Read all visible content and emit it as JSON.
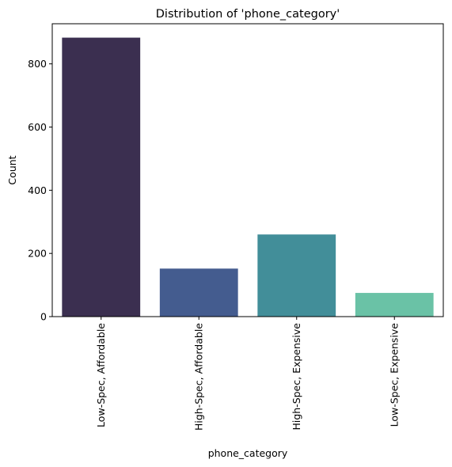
{
  "chart_data": {
    "type": "bar",
    "title": "Distribution of 'phone_category'",
    "xlabel": "phone_category",
    "ylabel": "Count",
    "categories": [
      "Low-Spec, Affordable",
      "High-Spec, Affordable",
      "High-Spec, Expensive",
      "Low-Spec, Expensive"
    ],
    "values": [
      883,
      152,
      260,
      75
    ],
    "colors": [
      "#3b2f50",
      "#445c8f",
      "#428e99",
      "#6ac2a6"
    ],
    "ylim": [
      0,
      927
    ],
    "yticks": [
      0,
      200,
      400,
      600,
      800
    ],
    "grid": false,
    "legend": "none"
  }
}
